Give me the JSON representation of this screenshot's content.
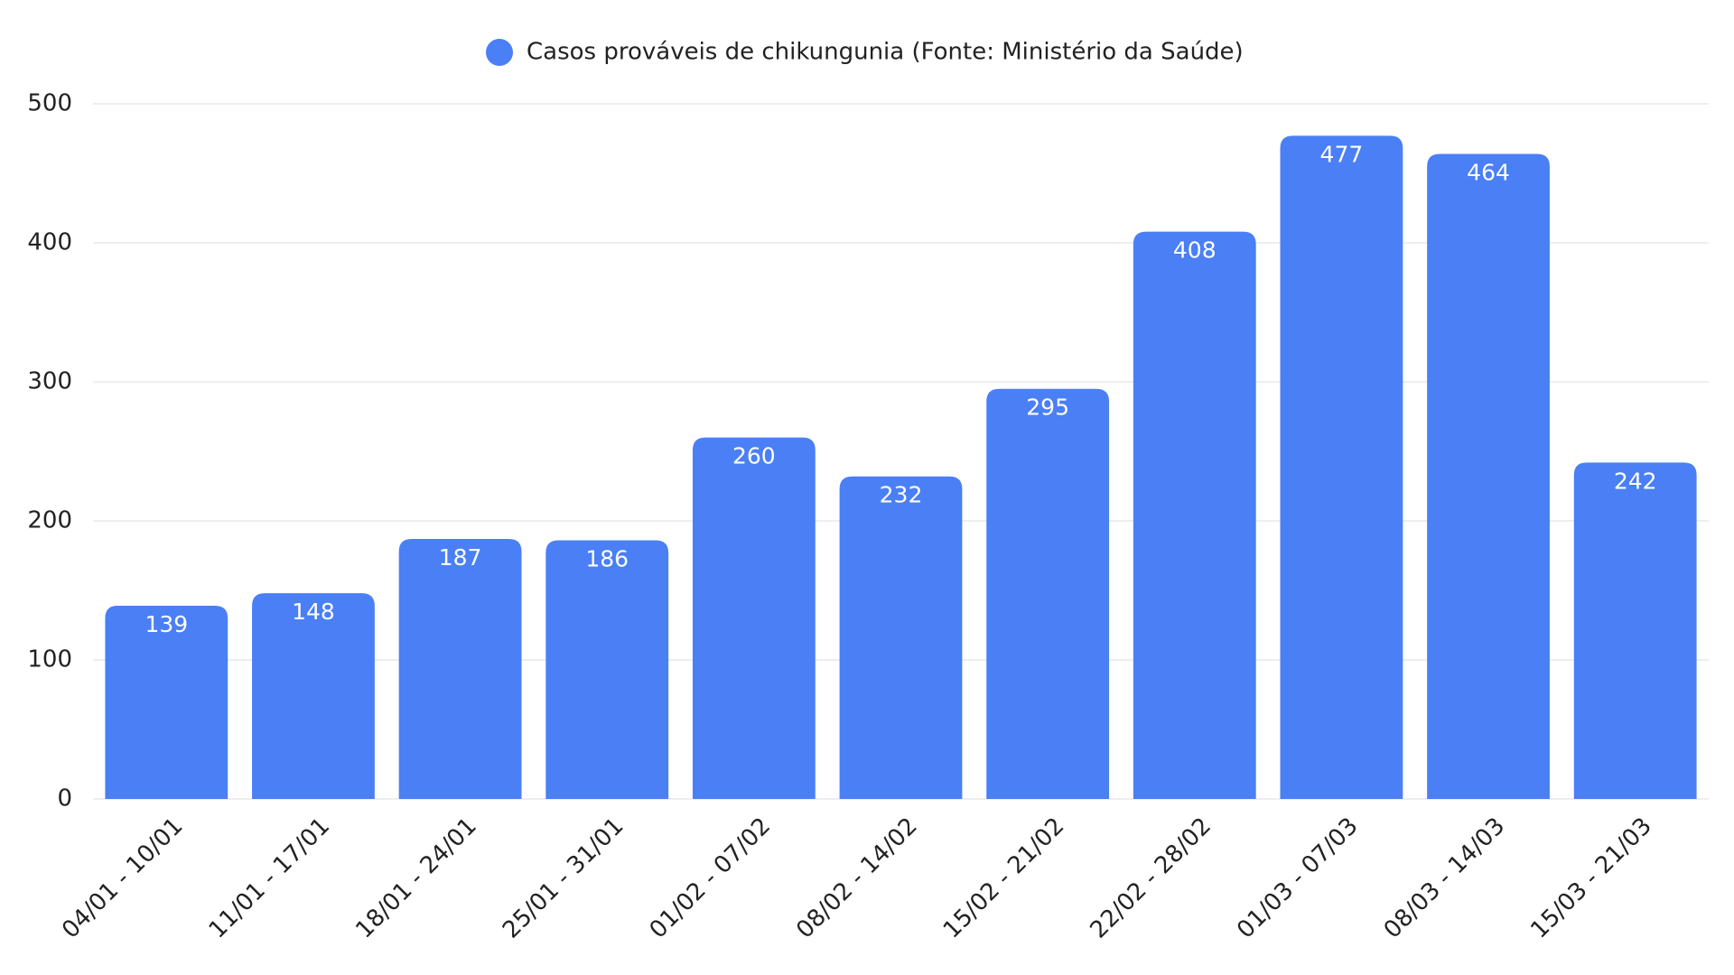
{
  "chart_data": {
    "type": "bar",
    "categories": [
      "04/01 - 10/01",
      "11/01 - 17/01",
      "18/01 - 24/01",
      "25/01 - 31/01",
      "01/02 - 07/02",
      "08/02 - 14/02",
      "15/02 - 21/02",
      "22/02 - 28/02",
      "01/03 - 07/03",
      "08/03 - 14/03",
      "15/03 - 21/03"
    ],
    "series": [
      {
        "name": "Casos prováveis de chikungunia (Fonte: Ministério da Saúde)",
        "color": "#4a7ff5",
        "values": [
          139,
          148,
          187,
          186,
          260,
          232,
          295,
          408,
          477,
          464,
          242
        ]
      }
    ],
    "ylim": [
      0,
      500
    ],
    "yticks": [
      0,
      100,
      200,
      300,
      400,
      500
    ],
    "grid": true,
    "legend": "top"
  }
}
